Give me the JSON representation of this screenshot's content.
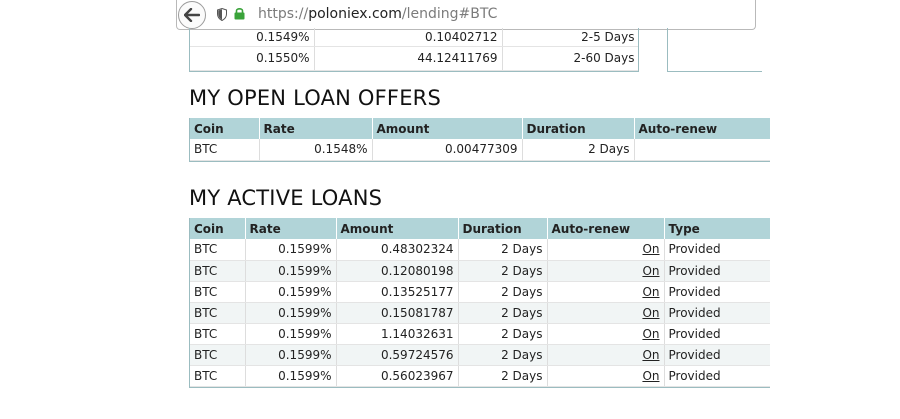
{
  "browser": {
    "url_prefix": "https://",
    "url_host": "poloniex.com",
    "url_path": "/lending#BTC"
  },
  "top_table": {
    "rows": [
      {
        "rate": "0.1549%",
        "amount": "0.10402712",
        "duration": "2-5 Days"
      },
      {
        "rate": "0.1550%",
        "amount": "44.12411769",
        "duration": "2-60 Days"
      }
    ]
  },
  "open_offers": {
    "title": "MY OPEN LOAN OFFERS",
    "columns": [
      "Coin",
      "Rate",
      "Amount",
      "Duration",
      "Auto-renew"
    ],
    "rows": [
      {
        "coin": "BTC",
        "rate": "0.1548%",
        "amount": "0.00477309",
        "duration": "2 Days",
        "autorenew": ""
      }
    ]
  },
  "active_loans": {
    "title": "MY ACTIVE LOANS",
    "columns": [
      "Coin",
      "Rate",
      "Amount",
      "Duration",
      "Auto-renew",
      "Type"
    ],
    "rows": [
      {
        "coin": "BTC",
        "rate": "0.1599%",
        "amount": "0.48302324",
        "duration": "2 Days",
        "autorenew": "On",
        "type": "Provided"
      },
      {
        "coin": "BTC",
        "rate": "0.1599%",
        "amount": "0.12080198",
        "duration": "2 Days",
        "autorenew": "On",
        "type": "Provided"
      },
      {
        "coin": "BTC",
        "rate": "0.1599%",
        "amount": "0.13525177",
        "duration": "2 Days",
        "autorenew": "On",
        "type": "Provided"
      },
      {
        "coin": "BTC",
        "rate": "0.1599%",
        "amount": "0.15081787",
        "duration": "2 Days",
        "autorenew": "On",
        "type": "Provided"
      },
      {
        "coin": "BTC",
        "rate": "0.1599%",
        "amount": "1.14032631",
        "duration": "2 Days",
        "autorenew": "On",
        "type": "Provided"
      },
      {
        "coin": "BTC",
        "rate": "0.1599%",
        "amount": "0.59724576",
        "duration": "2 Days",
        "autorenew": "On",
        "type": "Provided"
      },
      {
        "coin": "BTC",
        "rate": "0.1599%",
        "amount": "0.56023967",
        "duration": "2 Days",
        "autorenew": "On",
        "type": "Provided"
      }
    ]
  },
  "colors": {
    "header_bg": "#b1d4d8",
    "border": "#9bbcc0",
    "lock_green": "#3aa33a"
  },
  "icons": [
    "back-arrow-icon",
    "shield-icon",
    "lock-icon"
  ]
}
